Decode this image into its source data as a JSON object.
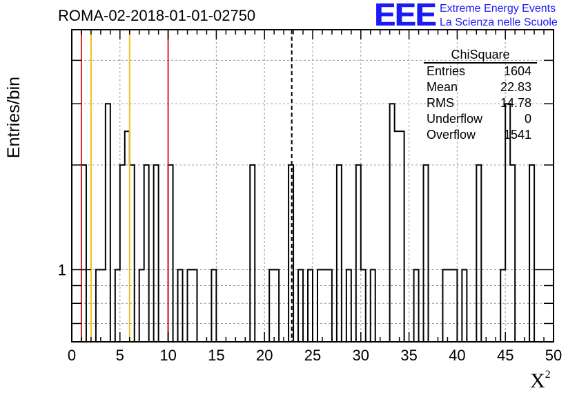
{
  "title": "ROMA-02-2018-01-01-02750",
  "logo": {
    "mark": "EEE",
    "line1": "Extreme Energy Events",
    "line2": "La Scienza nelle Scuole",
    "color": "#1b1bf5"
  },
  "stats": {
    "title": "ChiSquare",
    "rows": [
      {
        "label": "Entries",
        "value": "1604"
      },
      {
        "label": "Mean",
        "value": "22.83"
      },
      {
        "label": "RMS",
        "value": "14.78"
      },
      {
        "label": "Underflow",
        "value": "0"
      },
      {
        "label": "Overflow",
        "value": "1541"
      }
    ]
  },
  "chart_data": {
    "type": "histogram",
    "title": "ROMA-02-2018-01-01-02750",
    "xlabel": "X",
    "xlabel_sup": "2",
    "ylabel": "Entries/bin",
    "xlim": [
      0,
      50
    ],
    "yscale": "log",
    "ylim": [
      0.62,
      4.9
    ],
    "bin_width": 0.5,
    "x_ticks": [
      0,
      5,
      10,
      15,
      20,
      25,
      30,
      35,
      40,
      45,
      50
    ],
    "y_tick_labels": [
      {
        "value": 1,
        "label": "1"
      }
    ],
    "grid": true,
    "bins": [
      {
        "x": 1.0,
        "count": 2
      },
      {
        "x": 2.5,
        "count": 1
      },
      {
        "x": 3.0,
        "count": 1
      },
      {
        "x": 3.5,
        "count": 3
      },
      {
        "x": 4.5,
        "count": 1
      },
      {
        "x": 5.0,
        "count": 2
      },
      {
        "x": 5.5,
        "count": 2.5
      },
      {
        "x": 6.0,
        "count": 2
      },
      {
        "x": 7.0,
        "count": 1
      },
      {
        "x": 7.5,
        "count": 2
      },
      {
        "x": 8.5,
        "count": 2
      },
      {
        "x": 10.0,
        "count": 2
      },
      {
        "x": 11.0,
        "count": 1
      },
      {
        "x": 12.0,
        "count": 1
      },
      {
        "x": 12.5,
        "count": 1
      },
      {
        "x": 14.5,
        "count": 1
      },
      {
        "x": 18.5,
        "count": 2
      },
      {
        "x": 20.5,
        "count": 1
      },
      {
        "x": 21.0,
        "count": 1
      },
      {
        "x": 22.5,
        "count": 2
      },
      {
        "x": 23.5,
        "count": 1
      },
      {
        "x": 24.5,
        "count": 1
      },
      {
        "x": 25.5,
        "count": 1
      },
      {
        "x": 26.0,
        "count": 1
      },
      {
        "x": 26.5,
        "count": 1
      },
      {
        "x": 27.5,
        "count": 2
      },
      {
        "x": 28.5,
        "count": 1
      },
      {
        "x": 29.5,
        "count": 2
      },
      {
        "x": 30.0,
        "count": 1
      },
      {
        "x": 31.0,
        "count": 1
      },
      {
        "x": 33.0,
        "count": 3
      },
      {
        "x": 33.5,
        "count": 2.5
      },
      {
        "x": 34.0,
        "count": 2.5
      },
      {
        "x": 35.5,
        "count": 1
      },
      {
        "x": 36.5,
        "count": 2
      },
      {
        "x": 38.5,
        "count": 1
      },
      {
        "x": 39.0,
        "count": 1
      },
      {
        "x": 39.5,
        "count": 1
      },
      {
        "x": 40.5,
        "count": 1
      },
      {
        "x": 42.0,
        "count": 2
      },
      {
        "x": 44.5,
        "count": 1
      },
      {
        "x": 45.0,
        "count": 3
      },
      {
        "x": 45.5,
        "count": 2
      },
      {
        "x": 47.5,
        "count": 2
      }
    ],
    "vertical_lines": [
      {
        "x": 1.0,
        "color": "#dd2222",
        "style": "solid"
      },
      {
        "x": 2.0,
        "color": "#f0c020",
        "style": "solid"
      },
      {
        "x": 6.0,
        "color": "#f0c020",
        "style": "solid"
      },
      {
        "x": 10.0,
        "color": "#dd2222",
        "style": "solid"
      },
      {
        "x": 22.83,
        "color": "#000000",
        "style": "dashed"
      }
    ]
  }
}
